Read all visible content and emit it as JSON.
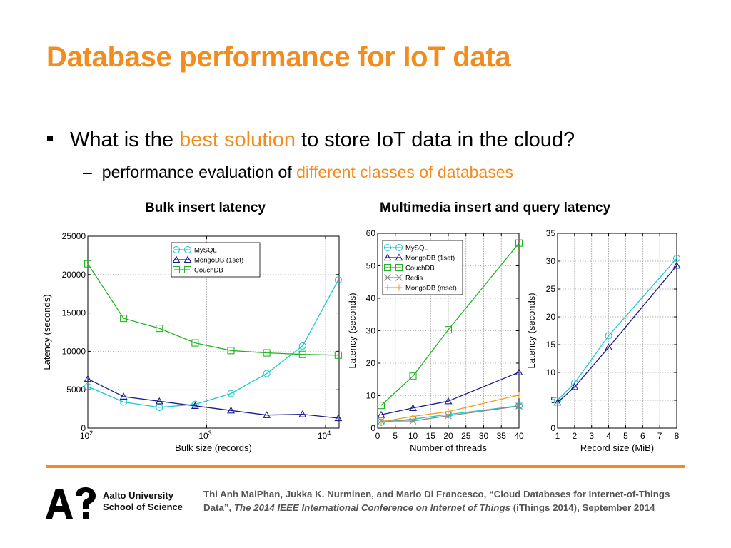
{
  "slide": {
    "title": "Database performance for IoT data",
    "bullet": {
      "prefix": "What is the ",
      "highlight": "best solution",
      "suffix": " to store IoT data in the cloud?"
    },
    "sub_bullet": {
      "dash": "–",
      "prefix": "performance evaluation of ",
      "highlight": "different classes of databases"
    },
    "chart_titles": {
      "bulk": "Bulk insert latency",
      "multimedia": "Multimedia insert and query latency"
    },
    "university": {
      "line1": "Aalto University",
      "line2": "School of Science"
    },
    "citation": {
      "authors": "Thi Anh MaiPhan, Jukka K. Nurminen, and Mario Di Francesco, “Cloud Databases for Internet-of-Things Data”, ",
      "venue": "The 2014 IEEE International Conference on Internet of Things",
      "tail": " (iThings 2014), September 2014"
    },
    "colors": {
      "accent": "#f28c1f",
      "mysql": "#1fc7d4",
      "mongodb": "#1a1a8c",
      "couchdb": "#22b522",
      "redis": "#888888",
      "mongodb_mset": "#f0a020"
    }
  },
  "chart_data": [
    {
      "id": "bulk",
      "type": "line",
      "title": "Bulk insert latency",
      "xlabel": "Bulk size (records)",
      "ylabel": "Latency (seconds)",
      "xscale": "log",
      "xlim": [
        100,
        13000
      ],
      "ylim": [
        0,
        25000
      ],
      "yticks": [
        0,
        5000,
        10000,
        15000,
        20000,
        25000
      ],
      "xticks": [
        {
          "value": 100,
          "base": "10",
          "exp": "2"
        },
        {
          "value": 1000,
          "base": "10",
          "exp": "3"
        },
        {
          "value": 10000,
          "base": "10",
          "exp": "4"
        }
      ],
      "legend_position": "top-right",
      "series": [
        {
          "name": "MySQL",
          "marker": "circle",
          "color": "#1fc7d4",
          "x": [
            100,
            200,
            400,
            800,
            1600,
            3200,
            6400,
            12800
          ],
          "y": [
            5400,
            3400,
            2700,
            3100,
            4500,
            7100,
            10700,
            19300
          ]
        },
        {
          "name": "MongoDB (1set)",
          "marker": "triangle",
          "color": "#1a1a8c",
          "x": [
            100,
            200,
            400,
            800,
            1600,
            3200,
            6400,
            12800
          ],
          "y": [
            6400,
            4100,
            3500,
            2900,
            2300,
            1700,
            1800,
            1300
          ]
        },
        {
          "name": "CouchDB",
          "marker": "square",
          "color": "#22b522",
          "x": [
            100,
            200,
            400,
            800,
            1600,
            3200,
            6400,
            12800
          ],
          "y": [
            21400,
            14300,
            13000,
            11100,
            10100,
            9800,
            9600,
            9500
          ]
        }
      ]
    },
    {
      "id": "threads",
      "type": "line",
      "title": "",
      "xlabel": "Number of threads",
      "ylabel": "Latency (seconds)",
      "xlim": [
        0,
        40
      ],
      "ylim": [
        0,
        60
      ],
      "xticks": [
        0,
        5,
        10,
        15,
        20,
        25,
        30,
        35,
        40
      ],
      "yticks": [
        0,
        10,
        20,
        30,
        40,
        50,
        60
      ],
      "legend_position": "top-left",
      "series": [
        {
          "name": "MySQL",
          "marker": "circle",
          "color": "#1fc7d4",
          "x": [
            1,
            10,
            20,
            40
          ],
          "y": [
            1.8,
            2.8,
            4.2,
            6.9
          ]
        },
        {
          "name": "MongoDB (1set)",
          "marker": "triangle",
          "color": "#1a1a8c",
          "x": [
            1,
            10,
            20,
            40
          ],
          "y": [
            4.1,
            6.2,
            8.3,
            17.2
          ]
        },
        {
          "name": "CouchDB",
          "marker": "square",
          "color": "#22b522",
          "x": [
            1,
            10,
            20,
            40
          ],
          "y": [
            7.0,
            16.0,
            30.3,
            57.0
          ]
        },
        {
          "name": "Redis",
          "marker": "x",
          "color": "#888888",
          "x": [
            1,
            10,
            20,
            40
          ],
          "y": [
            2.2,
            2.2,
            3.8,
            6.8
          ]
        },
        {
          "name": "MongoDB (mset)",
          "marker": "plus",
          "color": "#f0a020",
          "x": [
            1,
            10,
            20,
            40
          ],
          "y": [
            2.0,
            3.6,
            5.1,
            10.2
          ]
        }
      ]
    },
    {
      "id": "record",
      "type": "line",
      "title": "",
      "xlabel": "Record size (MiB)",
      "ylabel": "Latency (seconds)",
      "xlim": [
        1,
        8
      ],
      "ylim": [
        0,
        35
      ],
      "xticks": [
        1,
        2,
        3,
        4,
        5,
        6,
        7,
        8
      ],
      "yticks": [
        0,
        5,
        10,
        15,
        20,
        25,
        30,
        35
      ],
      "series": [
        {
          "name": "MySQL",
          "marker": "circle",
          "color": "#1fc7d4",
          "x": [
            1,
            2,
            4,
            8
          ],
          "y": [
            5.0,
            8.1,
            16.6,
            30.5
          ]
        },
        {
          "name": "MongoDB",
          "marker": "triangle",
          "color": "#1a1a8c",
          "x": [
            1,
            2,
            4,
            8
          ],
          "y": [
            4.6,
            7.4,
            14.5,
            29.2
          ]
        }
      ]
    }
  ]
}
